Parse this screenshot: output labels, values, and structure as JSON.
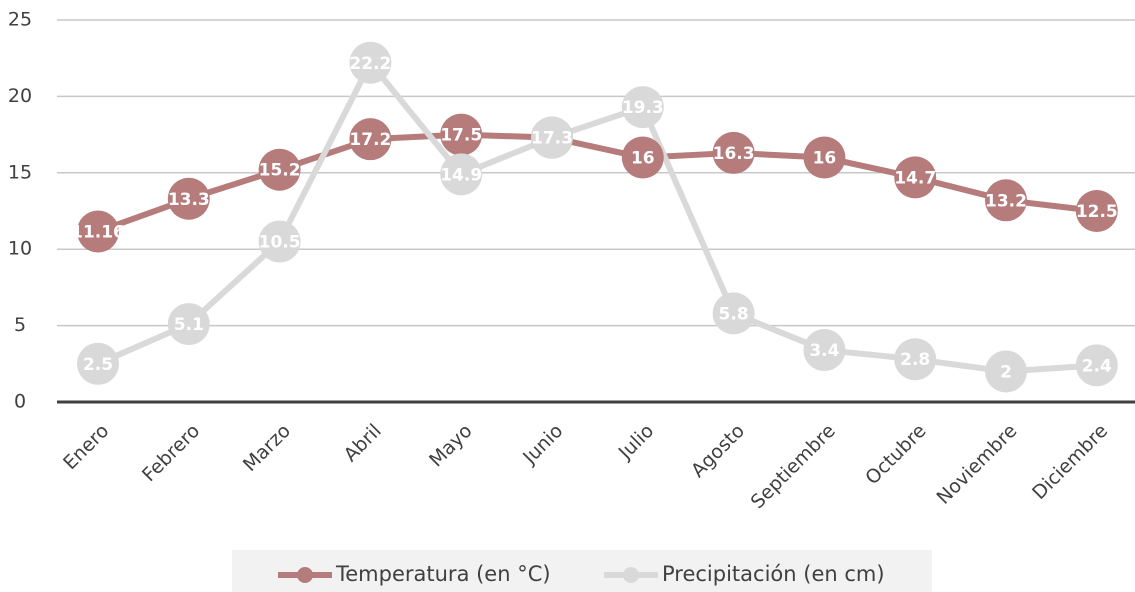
{
  "chart_data": {
    "type": "line",
    "categories": [
      "Enero",
      "Febrero",
      "Marzo",
      "Abril",
      "Mayo",
      "Junio",
      "Julio",
      "Agosto",
      "Septiembre",
      "Octubre",
      "Noviembre",
      "Diciembre"
    ],
    "series": [
      {
        "name": "Temperatura (en °C)",
        "color": "#b67b7b",
        "values": [
          11.16,
          13.3,
          15.2,
          17.2,
          17.5,
          17.3,
          16,
          16.3,
          16,
          14.7,
          13.2,
          12.5
        ]
      },
      {
        "name": "Precipitación (en cm)",
        "color": "#d9d9d9",
        "values": [
          2.5,
          5.1,
          10.5,
          22.2,
          14.9,
          17.3,
          19.3,
          5.8,
          3.4,
          2.8,
          2,
          2.4
        ]
      }
    ],
    "ylim": [
      0,
      25
    ],
    "yticks": [
      0,
      5,
      10,
      15,
      20,
      25
    ],
    "grid": true,
    "legend": "bottom"
  }
}
